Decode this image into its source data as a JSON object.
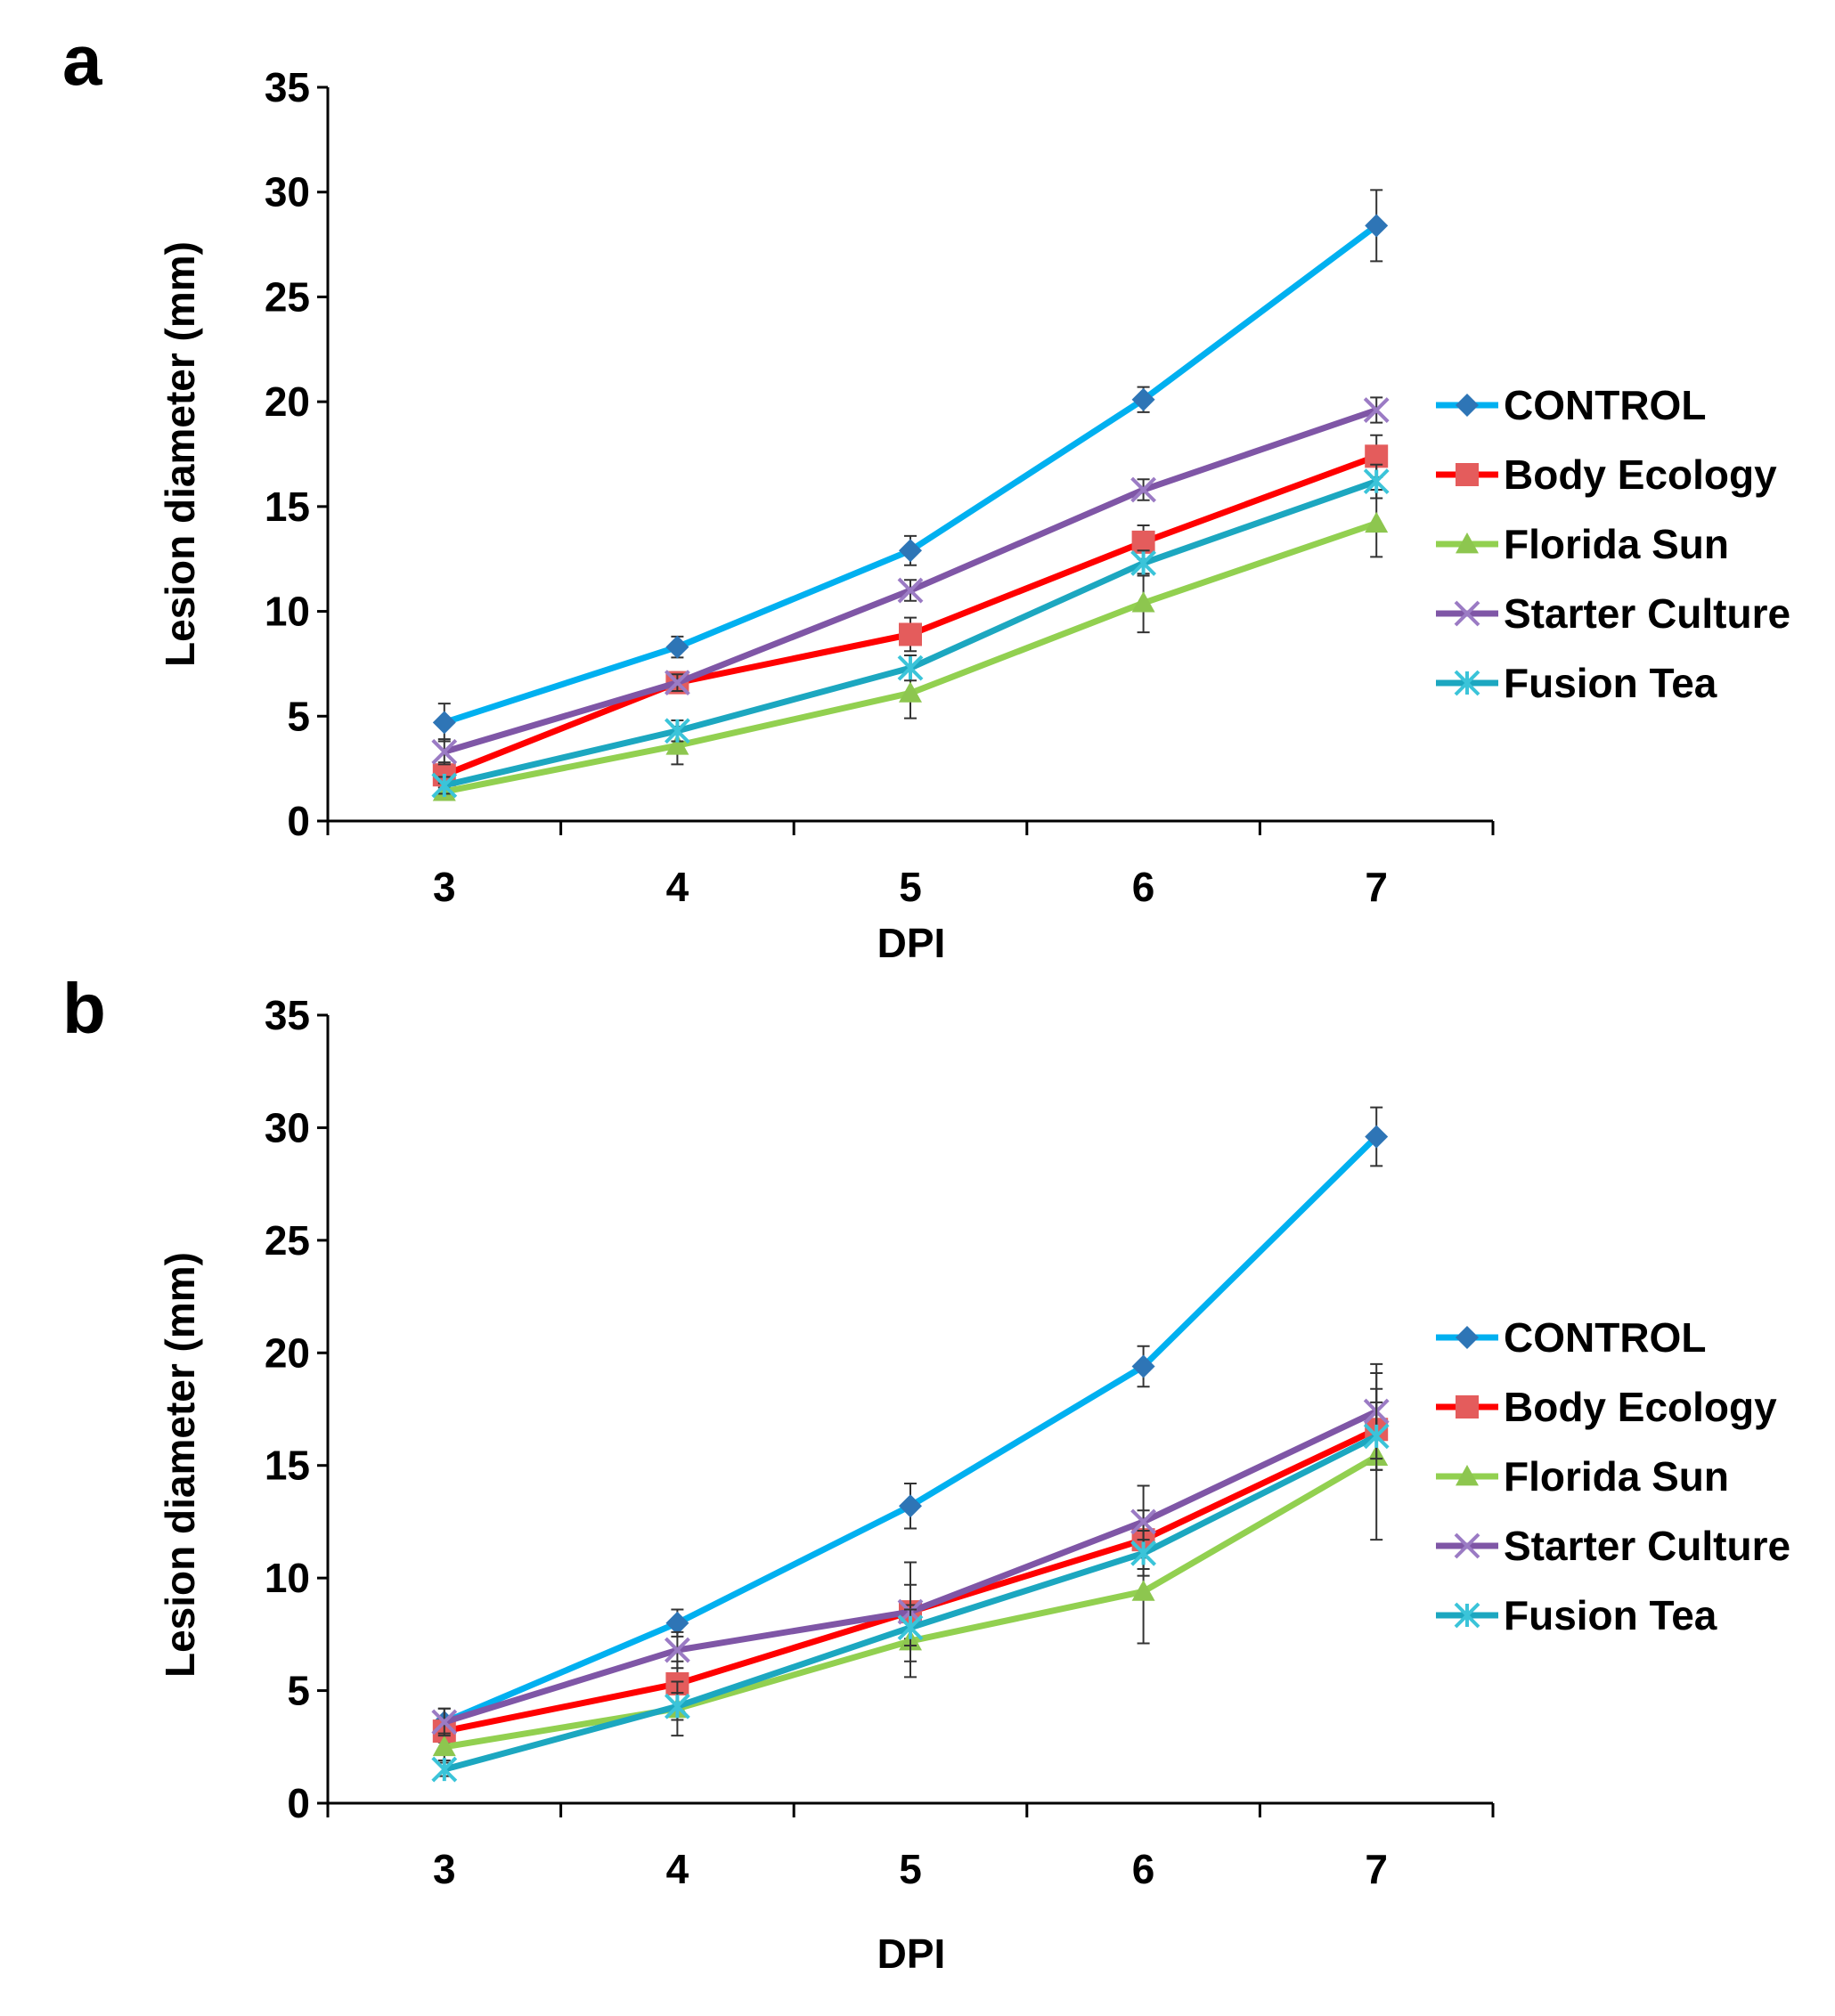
{
  "chart_data": [
    {
      "type": "line",
      "panel_label": "a",
      "xlabel": "DPI",
      "ylabel": "Lesion diameter (mm)",
      "x": [
        3,
        4,
        5,
        6,
        7
      ],
      "ylim": [
        0,
        35
      ],
      "yticks": [
        0,
        5,
        10,
        15,
        20,
        25,
        30,
        35
      ],
      "legend_position": "right",
      "series": [
        {
          "name": "CONTROL",
          "color": "#00B0F0",
          "marker": "diamond",
          "marker_color": "#2E75B6",
          "values": [
            4.7,
            8.3,
            12.9,
            20.1,
            28.4
          ],
          "errors": [
            0.9,
            0.5,
            0.7,
            0.6,
            1.7
          ]
        },
        {
          "name": "Body Ecology",
          "color": "#FF0000",
          "marker": "square",
          "marker_color": "#E45C5C",
          "values": [
            2.2,
            6.6,
            8.9,
            13.3,
            17.4
          ],
          "errors": [
            0.6,
            0.5,
            0.8,
            0.8,
            1.0
          ]
        },
        {
          "name": "Florida Sun",
          "color": "#92D050",
          "marker": "triangle",
          "marker_color": "#8DC64F",
          "values": [
            1.4,
            3.6,
            6.1,
            10.4,
            14.2
          ],
          "errors": [
            0.4,
            0.9,
            1.2,
            1.4,
            1.6
          ]
        },
        {
          "name": "Starter Culture",
          "color": "#7F56A6",
          "marker": "x",
          "marker_color": "#9B7BC4",
          "values": [
            3.3,
            6.6,
            11.0,
            15.8,
            19.6
          ],
          "errors": [
            0.6,
            0.4,
            0.5,
            0.5,
            0.6
          ]
        },
        {
          "name": "Fusion Tea",
          "color": "#1CA7C0",
          "marker": "asterisk",
          "marker_color": "#3BC4D9",
          "values": [
            1.7,
            4.3,
            7.3,
            12.3,
            16.2
          ],
          "errors": [
            0.4,
            0.5,
            0.6,
            0.6,
            0.8
          ]
        }
      ]
    },
    {
      "type": "line",
      "panel_label": "b",
      "xlabel": "DPI",
      "ylabel": "Lesion diameter (mm)",
      "x": [
        3,
        4,
        5,
        6,
        7
      ],
      "ylim": [
        0,
        35
      ],
      "yticks": [
        0,
        5,
        10,
        15,
        20,
        25,
        30,
        35
      ],
      "legend_position": "right",
      "series": [
        {
          "name": "CONTROL",
          "color": "#00B0F0",
          "marker": "diamond",
          "marker_color": "#2E75B6",
          "values": [
            3.6,
            8.0,
            13.2,
            19.4,
            29.6
          ],
          "errors": [
            0.6,
            0.6,
            1.0,
            0.9,
            1.3
          ]
        },
        {
          "name": "Body Ecology",
          "color": "#FF0000",
          "marker": "square",
          "marker_color": "#E45C5C",
          "values": [
            3.2,
            5.3,
            8.5,
            11.7,
            16.6
          ],
          "errors": [
            0.5,
            1.0,
            1.2,
            1.3,
            1.8
          ]
        },
        {
          "name": "Florida Sun",
          "color": "#92D050",
          "marker": "triangle",
          "marker_color": "#8DC64F",
          "values": [
            2.5,
            4.2,
            7.2,
            9.4,
            15.4
          ],
          "errors": [
            0.6,
            1.2,
            1.6,
            2.3,
            3.7
          ]
        },
        {
          "name": "Starter Culture",
          "color": "#7F56A6",
          "marker": "x",
          "marker_color": "#9B7BC4",
          "values": [
            3.6,
            6.8,
            8.5,
            12.5,
            17.4
          ],
          "errors": [
            0.6,
            0.8,
            2.2,
            1.6,
            2.1
          ]
        },
        {
          "name": "Fusion Tea",
          "color": "#1CA7C0",
          "marker": "asterisk",
          "marker_color": "#3BC4D9",
          "values": [
            1.5,
            4.3,
            7.8,
            11.1,
            16.3
          ],
          "errors": [
            0.3,
            0.6,
            0.8,
            1.0,
            1.5
          ]
        }
      ]
    }
  ]
}
